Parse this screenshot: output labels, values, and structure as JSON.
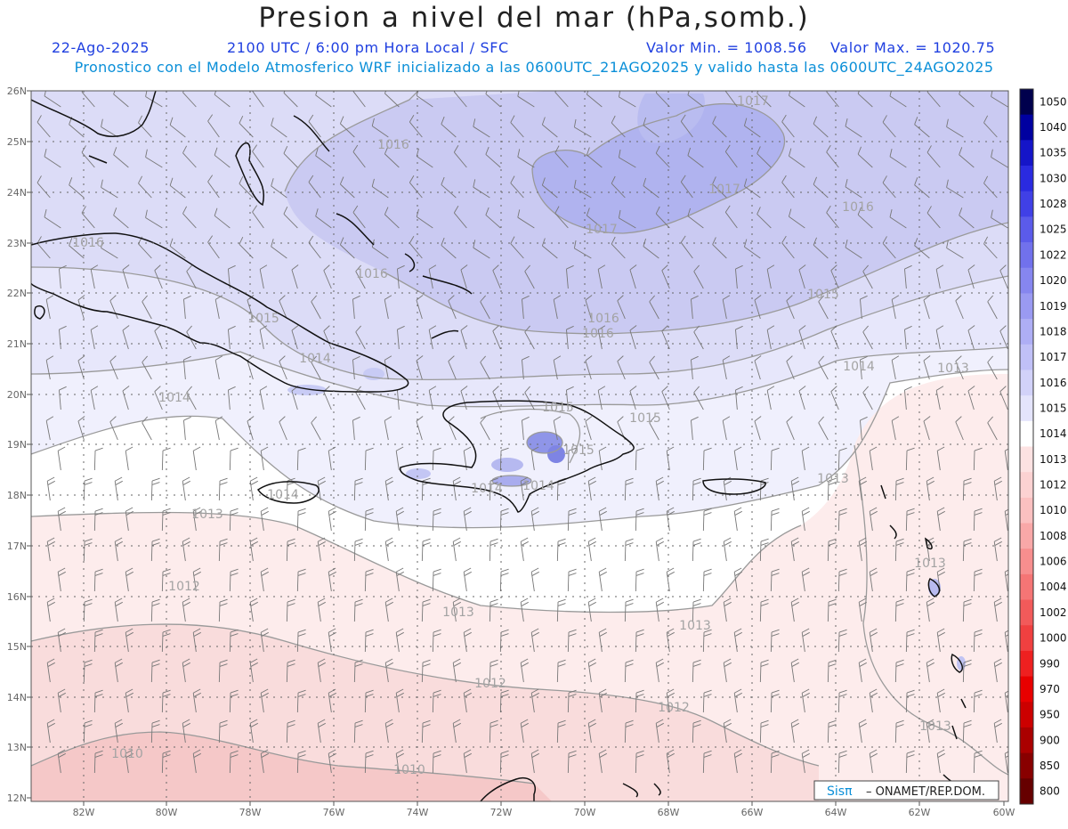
{
  "header": {
    "title": "Presion a nivel del mar (hPa,somb.)",
    "date": "22-Ago-2025",
    "time": "2100 UTC / 6:00 pm Hora Local / SFC",
    "min": "Valor Min. = 1008.56",
    "max": "Valor Max. = 1020.75",
    "subtitle": "Pronostico con el Modelo Atmosferico WRF inicializado a las 0600UTC_21AGO2025 y valido hasta las  0600UTC_24AGO2025"
  },
  "colors": {
    "low_high": "#f2b3b3",
    "neutral": "#ffffff",
    "high": "#aeb2f0",
    "coast": "#111111",
    "isobar": "#8f8f8f"
  },
  "axes": {
    "lon_labels": [
      "82W",
      "80W",
      "78W",
      "76W",
      "74W",
      "72W",
      "70W",
      "68W",
      "66W",
      "64W",
      "62W",
      "60W"
    ],
    "lat_labels": [
      "26N",
      "25N",
      "24N",
      "23N",
      "22N",
      "21N",
      "20N",
      "19N",
      "18N",
      "17N",
      "16N",
      "15N",
      "14N",
      "13N",
      "12N"
    ]
  },
  "isobar_labels": [
    "1017",
    "1017",
    "1016",
    "1016",
    "1016",
    "1016",
    "1017",
    "1016",
    "1015",
    "1015",
    "1016",
    "1015",
    "1014",
    "1014",
    "1014",
    "1015",
    "1015",
    "1014",
    "1013",
    "1014",
    "1014",
    "1013",
    "1013",
    "1013",
    "1012",
    "1013",
    "1013",
    "1012",
    "1012",
    "1013",
    "1010",
    "1010"
  ],
  "colorbar": {
    "labels": [
      "1050",
      "1040",
      "1035",
      "1030",
      "1028",
      "1025",
      "1022",
      "1020",
      "1019",
      "1018",
      "1017",
      "1016",
      "1015",
      "1014",
      "1013",
      "1012",
      "1010",
      "1008",
      "1006",
      "1004",
      "1002",
      "1000",
      "990",
      "970",
      "950",
      "900",
      "850",
      "800"
    ],
    "colors": [
      "#00004d",
      "#0000a0",
      "#1515c8",
      "#2a2ae0",
      "#4040e6",
      "#5b5bea",
      "#7171ec",
      "#8686ef",
      "#9a9af2",
      "#aeaef5",
      "#c0c0f7",
      "#d2d2f9",
      "#e4e4fc",
      "#ffffff",
      "#fde2e2",
      "#fcd2d2",
      "#fbc0c0",
      "#f9a8a8",
      "#f78e8e",
      "#f57575",
      "#f25a5a",
      "#f04040",
      "#ee2020",
      "#e80000",
      "#cc0000",
      "#aa0000",
      "#880000",
      "#660000"
    ]
  },
  "credit": {
    "brand": "Sisπ",
    "text": "– ONAMET/REP.DOM."
  }
}
